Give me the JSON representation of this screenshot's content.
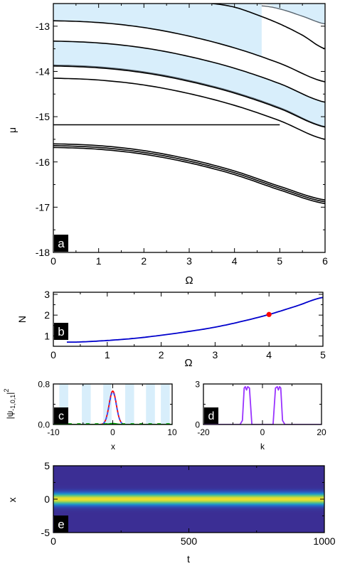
{
  "chart_data": [
    {
      "id": "a",
      "type": "line",
      "panel_label": "a",
      "xlabel": "Ω",
      "ylabel": "μ",
      "xlim": [
        0,
        6
      ],
      "ylim": [
        -18,
        -12.5
      ],
      "xticks": [
        "0",
        "1",
        "2",
        "3",
        "4",
        "5",
        "6"
      ],
      "yticks": [
        "-18",
        "-17",
        "-16",
        "-15",
        "-14",
        "-13"
      ],
      "band_color": "#d8eefb",
      "line_color": "#000000",
      "edge_color": "#5a6670",
      "bands": [
        {
          "x": [
            0,
            1,
            2,
            3,
            4,
            4.6
          ],
          "upper": [
            -12.5,
            -12.5,
            -12.5,
            -12.5,
            -12.5,
            -12.5
          ],
          "lower": [
            -12.88,
            -12.92,
            -13.03,
            -13.22,
            -13.48,
            -13.66
          ]
        },
        {
          "x": [
            4.6,
            5,
            5.5,
            6
          ],
          "upper": [
            -12.5,
            -12.5,
            -12.5,
            -12.5
          ],
          "lower": [
            -12.5,
            -12.62,
            -12.78,
            -12.95
          ]
        },
        {
          "x": [
            0,
            1,
            2,
            3,
            4,
            5,
            6
          ],
          "upper": [
            -13.33,
            -13.37,
            -13.48,
            -13.67,
            -13.93,
            -14.27,
            -14.68
          ],
          "lower": [
            -13.86,
            -13.9,
            -14.01,
            -14.2,
            -14.46,
            -14.8,
            -15.22
          ]
        },
        {
          "x": [
            0,
            1,
            2,
            3,
            4,
            5,
            6
          ],
          "upper": [
            -14.15,
            -14.19,
            -14.3,
            -14.49,
            -14.75,
            -15.09,
            -15.5
          ],
          "lower": [
            -14.15,
            -14.19,
            -14.3,
            -14.49,
            -14.75,
            -15.09,
            -15.5
          ]
        }
      ],
      "series": [
        {
          "style": "black",
          "x": [
            0,
            1,
            2,
            3,
            4,
            5,
            6
          ],
          "values": [
            -12.88,
            -12.92,
            -13.03,
            -13.22,
            -13.48,
            -13.82,
            -14.23
          ]
        },
        {
          "style": "black",
          "x": [
            3.5,
            4,
            4.5,
            5,
            5.5,
            6
          ],
          "values": [
            -12.5,
            -12.58,
            -12.75,
            -12.95,
            -13.2,
            -13.5
          ]
        },
        {
          "style": "edge",
          "x": [
            4.6,
            5,
            5.5,
            6
          ],
          "values": [
            -12.55,
            -12.62,
            -12.78,
            -12.95
          ]
        },
        {
          "style": "black",
          "x": [
            0,
            1,
            2,
            3,
            4,
            5,
            6
          ],
          "values": [
            -13.33,
            -13.37,
            -13.48,
            -13.67,
            -13.93,
            -14.27,
            -14.68
          ]
        },
        {
          "style": "edge",
          "x": [
            0,
            1,
            2,
            3,
            4,
            5,
            6
          ],
          "values": [
            -13.86,
            -13.9,
            -14.01,
            -14.2,
            -14.46,
            -14.8,
            -15.22
          ]
        },
        {
          "style": "black",
          "x": [
            0,
            1,
            2,
            3,
            4,
            5,
            6
          ],
          "values": [
            -13.88,
            -13.92,
            -14.03,
            -14.22,
            -14.48,
            -14.82,
            -15.23
          ]
        },
        {
          "style": "black",
          "x": [
            0,
            1,
            2,
            3,
            4,
            5,
            6
          ],
          "values": [
            -14.15,
            -14.19,
            -14.3,
            -14.49,
            -14.75,
            -15.09,
            -15.5
          ]
        },
        {
          "style": "black",
          "x": [
            0,
            5
          ],
          "values": [
            -15.18,
            -15.18
          ]
        },
        {
          "style": "black",
          "x": [
            0,
            1,
            2,
            3,
            4,
            5,
            6
          ],
          "values": [
            -15.6,
            -15.64,
            -15.75,
            -15.94,
            -16.2,
            -16.54,
            -16.84
          ]
        },
        {
          "style": "black",
          "x": [
            0,
            1,
            2,
            3,
            4,
            5,
            6
          ],
          "values": [
            -15.64,
            -15.68,
            -15.79,
            -15.98,
            -16.24,
            -16.58,
            -16.88
          ]
        },
        {
          "style": "black",
          "x": [
            0,
            1,
            2,
            3,
            4,
            5,
            6
          ],
          "values": [
            -15.68,
            -15.72,
            -15.83,
            -16.02,
            -16.28,
            -16.62,
            -16.92
          ]
        }
      ]
    },
    {
      "id": "b",
      "type": "line",
      "panel_label": "b",
      "xlabel": "Ω",
      "ylabel": "N",
      "xlim": [
        0,
        5
      ],
      "ylim": [
        0.5,
        3.1
      ],
      "xticks": [
        "0",
        "1",
        "2",
        "3",
        "4",
        "5"
      ],
      "yticks": [
        "1",
        "2",
        "3"
      ],
      "line_color": "#0000cc",
      "marker_color": "#ff0000",
      "series": [
        {
          "x": [
            0.25,
            0.5,
            1,
            1.5,
            2,
            2.5,
            3,
            3.5,
            4,
            4.5,
            5
          ],
          "values": [
            0.7,
            0.71,
            0.78,
            0.88,
            1.03,
            1.21,
            1.42,
            1.7,
            2.03,
            2.43,
            2.85
          ]
        }
      ],
      "marker": {
        "x": 4,
        "y": 2.03
      }
    },
    {
      "id": "c",
      "type": "line",
      "panel_label": "c",
      "xlabel": "x",
      "ylabel": "|ψ-1,0,1|²",
      "ylabel_main": "|ψ",
      "ylabel_sub": "-1,0,1",
      "ylabel_sup": "2",
      "xlim": [
        -10,
        10
      ],
      "ylim": [
        0,
        0.8
      ],
      "xticks": [
        "-10",
        "0",
        "10"
      ],
      "yticks": [
        "0.0",
        "0.8"
      ],
      "stripe_color": "#d8eefb",
      "stripes": [
        [
          -9,
          -7.5
        ],
        [
          -5.2,
          -3.7
        ],
        [
          -1.6,
          -0.2
        ],
        [
          2.1,
          3.6
        ],
        [
          5.6,
          7.1
        ],
        [
          8.1,
          9.6
        ]
      ],
      "series": [
        {
          "color": "#ff0000",
          "amplitude": 0.66,
          "center": 0,
          "width": 0.85
        },
        {
          "color": "#3355ff",
          "amplitude": 0.64,
          "center": 0,
          "width": 0.85,
          "dashed": true
        },
        {
          "color": "#00aa00",
          "amplitude": 0.02,
          "center": 0,
          "width": 0.85
        }
      ]
    },
    {
      "id": "d",
      "type": "line",
      "panel_label": "d",
      "xlabel": "k",
      "ylabel": "",
      "xlim": [
        -20,
        20
      ],
      "ylim": [
        0,
        3
      ],
      "xticks": [
        "-20",
        "0",
        "20"
      ],
      "yticks": [
        "0",
        "3"
      ],
      "line_color": "#9933ff",
      "peaks": [
        {
          "x": [
            -7.6,
            -6.8,
            -6.2,
            -5.8,
            -5.4,
            -5.0,
            -4.4,
            -3.6
          ],
          "y": [
            0,
            0.3,
            2.7,
            2.8,
            2.55,
            2.8,
            2.7,
            0
          ]
        },
        {
          "x": [
            3.6,
            4.4,
            5.0,
            5.4,
            5.8,
            6.2,
            6.8,
            7.6
          ],
          "y": [
            0,
            2.7,
            2.8,
            2.55,
            2.8,
            2.7,
            0.3,
            0
          ]
        }
      ]
    },
    {
      "id": "e",
      "type": "heatmap",
      "panel_label": "e",
      "xlabel": "t",
      "ylabel": "x",
      "xlim": [
        0,
        1000
      ],
      "ylim": [
        -5,
        5
      ],
      "xticks": [
        "0",
        "500",
        "1000"
      ],
      "yticks": [
        "-5",
        "0",
        "5"
      ],
      "colormap": [
        "#3b2e94",
        "#2b58c2",
        "#1a8fd0",
        "#2fbca7",
        "#9bd050",
        "#f5e12a"
      ],
      "profile_width": 0.85,
      "background_color": "#3b2e94"
    }
  ]
}
